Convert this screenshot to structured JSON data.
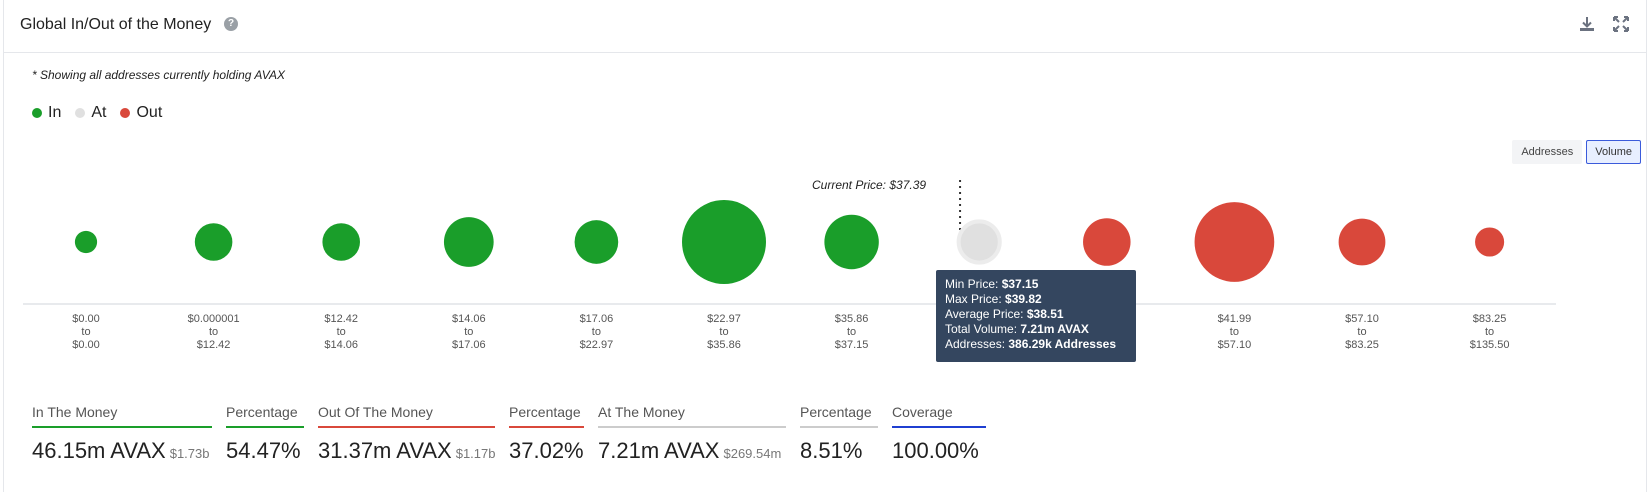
{
  "header": {
    "title": "Global In/Out of the Money",
    "help_icon": "question-circle-icon",
    "download_icon": "download-icon",
    "expand_icon": "expand-icon"
  },
  "note": "* Showing all addresses currently holding AVAX",
  "legend": [
    {
      "label": "In",
      "color": "#1a9e2a"
    },
    {
      "label": "At",
      "color": "#e0e0e0"
    },
    {
      "label": "Out",
      "color": "#d9483b"
    }
  ],
  "toggles": {
    "addresses": "Addresses",
    "volume": "Volume",
    "active": "volume"
  },
  "chart_data": {
    "type": "scatter",
    "title": "",
    "current_price_label": "Current Price: $37.39",
    "size_metric": "Volume",
    "bubbles": [
      {
        "min": "$0.00",
        "max": "$0.00",
        "status": "in",
        "volume_rel": 0.07
      },
      {
        "min": "$0.000001",
        "max": "$12.42",
        "status": "in",
        "volume_rel": 0.2
      },
      {
        "min": "$12.42",
        "max": "$14.06",
        "status": "in",
        "volume_rel": 0.2
      },
      {
        "min": "$14.06",
        "max": "$17.06",
        "status": "in",
        "volume_rel": 0.35
      },
      {
        "min": "$17.06",
        "max": "$22.97",
        "status": "in",
        "volume_rel": 0.27
      },
      {
        "min": "$22.97",
        "max": "$35.86",
        "status": "in",
        "volume_rel": 1.0
      },
      {
        "min": "$35.86",
        "max": "$37.15",
        "status": "in",
        "volume_rel": 0.42
      },
      {
        "min": "$37.15",
        "max": "$39.82",
        "status": "at",
        "volume_rel": 0.24
      },
      {
        "min": "$39.82",
        "max": "$41.99",
        "status": "out",
        "volume_rel": 0.32
      },
      {
        "min": "$41.99",
        "max": "$57.10",
        "status": "out",
        "volume_rel": 0.9
      },
      {
        "min": "$57.10",
        "max": "$83.25",
        "status": "out",
        "volume_rel": 0.31
      },
      {
        "min": "$83.25",
        "max": "$135.50",
        "status": "out",
        "volume_rel": 0.12
      }
    ],
    "range_connector": "to",
    "colors": {
      "in": "#1a9e2a",
      "at": "#e0e0e0",
      "out": "#d9483b"
    },
    "tooltip": {
      "min_price_label": "Min Price:",
      "min_price": "$37.15",
      "max_price_label": "Max Price:",
      "max_price": "$39.82",
      "avg_price_label": "Average Price:",
      "avg_price": "$38.51",
      "total_volume_label": "Total Volume:",
      "total_volume": "7.21m AVAX",
      "addresses_label": "Addresses:",
      "addresses": "386.29k Addresses"
    }
  },
  "stats": [
    {
      "label": "In The Money",
      "value": "46.15m AVAX",
      "sub": "$1.73b",
      "color": "#1a9e2a"
    },
    {
      "label": "Percentage",
      "value": "54.47%",
      "sub": "",
      "color": "#1a9e2a"
    },
    {
      "label": "Out Of The Money",
      "value": "31.37m AVAX",
      "sub": "$1.17b",
      "color": "#d9483b"
    },
    {
      "label": "Percentage",
      "value": "37.02%",
      "sub": "",
      "color": "#d9483b"
    },
    {
      "label": "At The Money",
      "value": "7.21m AVAX",
      "sub": "$269.54m",
      "color": "#cccccc"
    },
    {
      "label": "Percentage",
      "value": "8.51%",
      "sub": "",
      "color": "#cccccc"
    },
    {
      "label": "Coverage",
      "value": "100.00%",
      "sub": "",
      "color": "#1f3fd1"
    }
  ]
}
